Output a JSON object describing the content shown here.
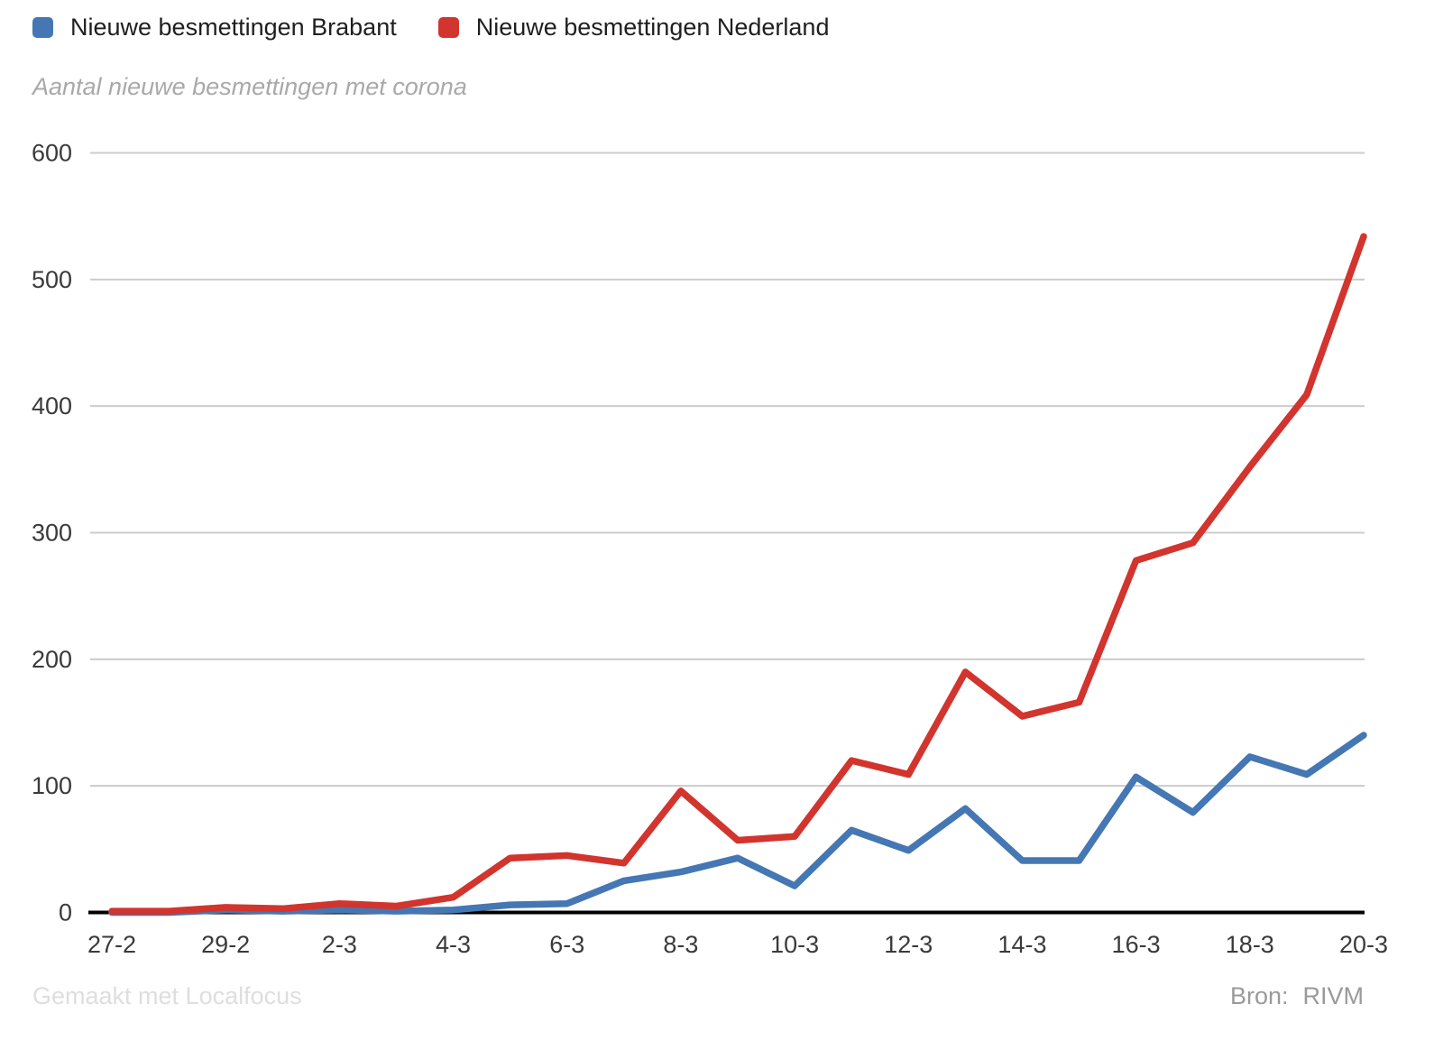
{
  "legend": [
    {
      "label": "Nieuwe besmettingen Brabant",
      "color": "#4477b3"
    },
    {
      "label": "Nieuwe besmettingen Nederland",
      "color": "#d2342e"
    }
  ],
  "subtitle": "Aantal nieuwe besmettingen met corona",
  "footer": {
    "made_with": "Gemaakt met Localfocus",
    "source_label": "Bron:",
    "source_value": "RIVM"
  },
  "chart_data": {
    "type": "line",
    "title": "",
    "subtitle": "Aantal nieuwe besmettingen met corona",
    "x": [
      "27-2",
      "28-2",
      "29-2",
      "1-3",
      "2-3",
      "3-3",
      "4-3",
      "5-3",
      "6-3",
      "7-3",
      "8-3",
      "9-3",
      "10-3",
      "11-3",
      "12-3",
      "13-3",
      "14-3",
      "15-3",
      "16-3",
      "17-3",
      "18-3",
      "19-3",
      "20-3"
    ],
    "x_labels_shown": [
      "27-2",
      "29-2",
      "2-3",
      "4-3",
      "6-3",
      "8-3",
      "10-3",
      "12-3",
      "14-3",
      "16-3",
      "18-3",
      "20-3"
    ],
    "series": [
      {
        "name": "Nieuwe besmettingen Brabant",
        "color": "#4477b3",
        "values": [
          0,
          0,
          2,
          1,
          2,
          1,
          2,
          6,
          7,
          25,
          32,
          43,
          21,
          65,
          49,
          82,
          41,
          41,
          107,
          79,
          123,
          109,
          140
        ]
      },
      {
        "name": "Nieuwe besmettingen Nederland",
        "color": "#d2342e",
        "values": [
          1,
          1,
          4,
          3,
          7,
          5,
          12,
          43,
          45,
          39,
          96,
          57,
          60,
          120,
          109,
          190,
          155,
          166,
          278,
          292,
          352,
          409,
          534
        ]
      }
    ],
    "ylim": [
      0,
      600
    ],
    "yticks": [
      0,
      100,
      200,
      300,
      400,
      500,
      600
    ],
    "grid": true,
    "legend_position": "top-left",
    "axis_color": "#000000",
    "gridline_color": "#cccccc",
    "tick_label_color": "#3a3a3a"
  }
}
